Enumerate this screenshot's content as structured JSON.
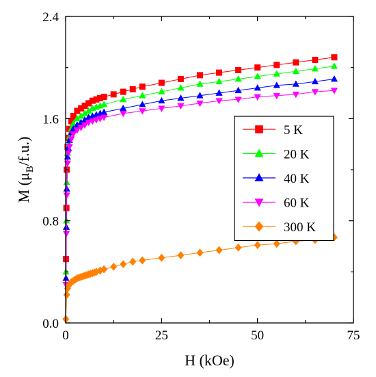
{
  "chart_data": {
    "type": "scatter",
    "xlabel": "H  (kOe)",
    "ylabel": {
      "main": "M  (μ",
      "sub": "B",
      "tail": "/f.u.)"
    },
    "xlim": [
      0,
      75
    ],
    "ylim": [
      0,
      2.4
    ],
    "x_ticks": [
      0,
      25,
      50,
      75
    ],
    "x_tick_labels": [
      "0",
      "25",
      "50",
      "75"
    ],
    "y_ticks": [
      0,
      0.8,
      1.6,
      2.4
    ],
    "y_tick_labels": [
      "0.0",
      "0.8",
      "1.6",
      "2.4"
    ],
    "grid": false,
    "legend_position": "right",
    "series": [
      {
        "name": "5 K",
        "color": "#ff0000",
        "marker": "square",
        "x": [
          0.1,
          0.2,
          0.3,
          0.5,
          0.7,
          1,
          1.5,
          2,
          3,
          4,
          5,
          6,
          7,
          8,
          9,
          10,
          12.5,
          15,
          17.5,
          20,
          25,
          30,
          35,
          40,
          45,
          50,
          55,
          60,
          65,
          70
        ],
        "y": [
          0.5,
          0.9,
          1.2,
          1.38,
          1.45,
          1.52,
          1.58,
          1.62,
          1.66,
          1.68,
          1.7,
          1.72,
          1.74,
          1.75,
          1.76,
          1.77,
          1.79,
          1.81,
          1.83,
          1.85,
          1.88,
          1.91,
          1.94,
          1.96,
          1.98,
          2.0,
          2.02,
          2.04,
          2.06,
          2.08
        ]
      },
      {
        "name": "20 K",
        "color": "#00ff00",
        "marker": "triangle-up",
        "x": [
          0.1,
          0.2,
          0.3,
          0.5,
          0.7,
          1,
          1.5,
          2,
          3,
          4,
          5,
          6,
          7,
          8,
          9,
          10,
          15,
          20,
          25,
          30,
          35,
          40,
          45,
          50,
          55,
          60,
          65,
          70
        ],
        "y": [
          0.4,
          0.8,
          1.1,
          1.33,
          1.4,
          1.46,
          1.52,
          1.56,
          1.6,
          1.62,
          1.64,
          1.66,
          1.68,
          1.69,
          1.7,
          1.71,
          1.75,
          1.78,
          1.81,
          1.84,
          1.87,
          1.89,
          1.91,
          1.93,
          1.95,
          1.97,
          1.99,
          2.01
        ]
      },
      {
        "name": "40 K",
        "color": "#0000ff",
        "marker": "triangle-up",
        "x": [
          0.1,
          0.2,
          0.3,
          0.5,
          0.7,
          1,
          1.5,
          2,
          3,
          4,
          5,
          6,
          7,
          8,
          9,
          10,
          15,
          20,
          25,
          30,
          35,
          40,
          45,
          50,
          55,
          60,
          65,
          70
        ],
        "y": [
          0.35,
          0.75,
          1.05,
          1.3,
          1.37,
          1.43,
          1.49,
          1.52,
          1.55,
          1.57,
          1.59,
          1.61,
          1.62,
          1.63,
          1.64,
          1.65,
          1.68,
          1.71,
          1.74,
          1.76,
          1.78,
          1.8,
          1.82,
          1.84,
          1.86,
          1.87,
          1.89,
          1.91
        ]
      },
      {
        "name": "60 K",
        "color": "#ff00ff",
        "marker": "triangle-down",
        "x": [
          0.1,
          0.2,
          0.3,
          0.5,
          0.7,
          1,
          1.5,
          2,
          3,
          4,
          5,
          6,
          7,
          8,
          9,
          10,
          15,
          20,
          25,
          30,
          35,
          40,
          45,
          50,
          55,
          60,
          65,
          70
        ],
        "y": [
          0.3,
          0.7,
          1.0,
          1.25,
          1.33,
          1.38,
          1.44,
          1.48,
          1.51,
          1.53,
          1.55,
          1.57,
          1.58,
          1.59,
          1.6,
          1.61,
          1.64,
          1.66,
          1.68,
          1.7,
          1.72,
          1.74,
          1.75,
          1.77,
          1.78,
          1.79,
          1.81,
          1.82
        ]
      },
      {
        "name": "300 K",
        "color": "#ff8000",
        "marker": "diamond",
        "x": [
          0.05,
          0.3,
          0.5,
          0.7,
          1,
          1.5,
          2,
          2.5,
          3,
          3.5,
          4,
          4.5,
          5,
          5.5,
          6,
          6.5,
          7,
          7.5,
          8,
          9,
          10,
          12.5,
          15,
          17.5,
          20,
          25,
          30,
          35,
          40,
          45,
          50,
          55,
          60,
          65,
          70
        ],
        "y": [
          0.03,
          0.22,
          0.27,
          0.29,
          0.3,
          0.32,
          0.33,
          0.34,
          0.35,
          0.355,
          0.36,
          0.365,
          0.37,
          0.375,
          0.38,
          0.385,
          0.39,
          0.395,
          0.4,
          0.41,
          0.42,
          0.44,
          0.46,
          0.48,
          0.49,
          0.51,
          0.53,
          0.55,
          0.57,
          0.59,
          0.61,
          0.62,
          0.64,
          0.65,
          0.67
        ]
      }
    ]
  }
}
